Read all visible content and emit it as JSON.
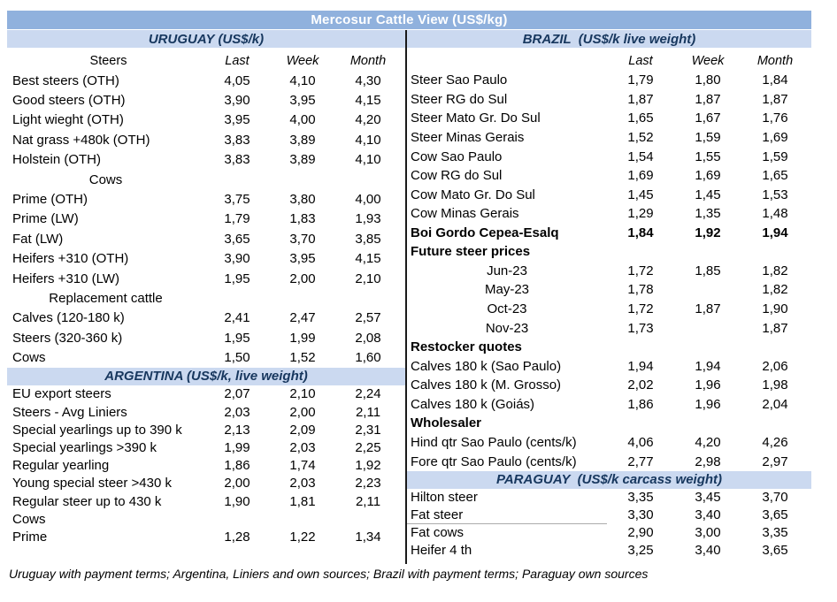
{
  "title": "Mercosur Cattle View (US$/kg)",
  "footer": "Uruguay with payment terms; Argentina, Liniers and own sources; Brazil with payment terms; Paraguay own sources",
  "colors": {
    "title_bar_bg": "#90B1DD",
    "title_text": "#FFFFFF",
    "section_bar_bg": "#CBD9F0",
    "section_text": "#17375E",
    "body_text": "#000000",
    "divider": "#1A1A1A",
    "faint_line": "#C8C8C8"
  },
  "table": {
    "col_headers": {
      "last": "Last",
      "week": "Week",
      "month": "Month"
    },
    "left": {
      "sections": [
        {
          "id": "uruguay",
          "header": "URUGUAY (US$/k)",
          "label_header": "Steers",
          "show_col_headers": true,
          "rows": [
            {
              "label": "Best steers (OTH)",
              "last": "4,05",
              "week": "4,10",
              "month": "4,30"
            },
            {
              "label": "Good steers (OTH)",
              "last": "3,90",
              "week": "3,95",
              "month": "4,15"
            },
            {
              "label": "Light wieght (OTH)",
              "last": "3,95",
              "week": "4,00",
              "month": "4,20"
            },
            {
              "label": "Nat grass +480k (OTH)",
              "last": "3,83",
              "week": "3,89",
              "month": "4,10"
            },
            {
              "label": "Holstein (OTH)",
              "last": "3,83",
              "week": "3,89",
              "month": "4,10"
            },
            {
              "label": "Cows",
              "align": "center"
            },
            {
              "label": "Prime (OTH)",
              "last": "3,75",
              "week": "3,80",
              "month": "4,00"
            },
            {
              "label": "Prime (LW)",
              "last": "1,79",
              "week": "1,83",
              "month": "1,93"
            },
            {
              "label": "Fat (LW)",
              "last": "3,65",
              "week": "3,70",
              "month": "3,85"
            },
            {
              "label": "Heifers +310 (OTH)",
              "last": "3,90",
              "week": "3,95",
              "month": "4,15"
            },
            {
              "label": "Heifers +310 (LW)",
              "last": "1,95",
              "week": "2,00",
              "month": "2,10"
            },
            {
              "label": "Replacement cattle",
              "align": "center",
              "ticks": [
                "week",
                "month"
              ]
            },
            {
              "label": "Calves (120-180 k)",
              "last": "2,41",
              "week": "2,47",
              "month": "2,57"
            },
            {
              "label": "Steers (320-360 k)",
              "last": "1,95",
              "week": "1,99",
              "month": "2,08"
            },
            {
              "label": "Cows",
              "last": "1,50",
              "week": "1,52",
              "month": "1,60"
            }
          ]
        },
        {
          "id": "argentina",
          "header": "ARGENTINA (US$/k, live weight)",
          "show_col_headers": false,
          "rows": [
            {
              "label": "EU export steers",
              "last": "2,07",
              "week": "2,10",
              "month": "2,24"
            },
            {
              "label": "Steers - Avg Liniers",
              "last": "2,03",
              "week": "2,00",
              "month": "2,11"
            },
            {
              "label": "Special yearlings up to 390 k",
              "last": "2,13",
              "week": "2,09",
              "month": "2,31"
            },
            {
              "label": "Special yearlings >390 k",
              "last": "1,99",
              "week": "2,03",
              "month": "2,25"
            },
            {
              "label": "Regular yearling",
              "last": "1,86",
              "week": "1,74",
              "month": "1,92"
            },
            {
              "label": "Young special steer >430 k",
              "last": "2,00",
              "week": "2,03",
              "month": "2,23"
            },
            {
              "label": "Regular steer up to 430 k",
              "last": "1,90",
              "week": "1,81",
              "month": "2,11"
            },
            {
              "label": "Cows"
            },
            {
              "label": "Prime",
              "last": "1,28",
              "week": "1,22",
              "month": "1,34"
            },
            {
              "label": "",
              "ticks": [
                "last",
                "week",
                "month"
              ]
            }
          ]
        }
      ]
    },
    "right": {
      "sections": [
        {
          "id": "brazil",
          "header": "BRAZIL  (US$/k live weight)",
          "label_header": "",
          "show_col_headers": true,
          "rows": [
            {
              "label": "Steer Sao Paulo",
              "last": "1,79",
              "week": "1,80",
              "month": "1,84"
            },
            {
              "label": "Steer RG do Sul",
              "last": "1,87",
              "week": "1,87",
              "month": "1,87"
            },
            {
              "label": "Steer Mato Gr. Do Sul",
              "last": "1,65",
              "week": "1,67",
              "month": "1,76"
            },
            {
              "label": "Steer Minas Gerais",
              "last": "1,52",
              "week": "1,59",
              "month": "1,69"
            },
            {
              "label": "Cow Sao Paulo",
              "last": "1,54",
              "week": "1,55",
              "month": "1,59"
            },
            {
              "label": "Cow RG do Sul",
              "last": "1,69",
              "week": "1,69",
              "month": "1,65"
            },
            {
              "label": "Cow Mato Gr. Do Sul",
              "last": "1,45",
              "week": "1,45",
              "month": "1,53"
            },
            {
              "label": "Cow Minas Gerais",
              "last": "1,29",
              "week": "1,35",
              "month": "1,48"
            },
            {
              "label": "Boi Gordo Cepea-Esalq",
              "last": "1,84",
              "week": "1,92",
              "month": "1,94",
              "bold": true,
              "bold_values": true
            },
            {
              "label": "Future steer prices",
              "bold": true
            },
            {
              "label": "Jun-23",
              "align": "center",
              "last": "1,72",
              "week": "1,85",
              "month": "1,82"
            },
            {
              "label": "May-23",
              "align": "center",
              "last": "1,78",
              "week": "",
              "month": "1,82"
            },
            {
              "label": "Oct-23",
              "align": "center",
              "last": "1,72",
              "week": "1,87",
              "month": "1,90"
            },
            {
              "label": "Nov-23",
              "align": "center",
              "last": "1,73",
              "week": "",
              "month": "1,87"
            },
            {
              "label": "Restocker quotes",
              "bold": true
            },
            {
              "label": "Calves 180 k (Sao Paulo)",
              "last": "1,94",
              "week": "1,94",
              "month": "2,06"
            },
            {
              "label": "Calves 180 k (M. Grosso)",
              "last": "2,02",
              "week": "1,96",
              "month": "1,98"
            },
            {
              "label": "Calves 180 k (Goiás)",
              "last": "1,86",
              "week": "1,96",
              "month": "2,04"
            },
            {
              "label": "Wholesaler",
              "bold": true
            },
            {
              "label": "Hind qtr Sao Paulo (cents/k)",
              "last": "4,06",
              "week": "4,20",
              "month": "4,26"
            },
            {
              "label": "Fore qtr Sao Paulo (cents/k)",
              "last": "2,77",
              "week": "2,98",
              "month": "2,97"
            }
          ]
        },
        {
          "id": "paraguay",
          "header": "PARAGUAY  (US$/k carcass weight)",
          "show_col_headers": false,
          "rows": [
            {
              "label": "Hilton steer",
              "last": "3,35",
              "week": "3,45",
              "month": "3,70"
            },
            {
              "label": "Fat steer",
              "last": "3,30",
              "week": "3,40",
              "month": "3,65",
              "underline": true
            },
            {
              "label": "Fat cows",
              "last": "2,90",
              "week": "3,00",
              "month": "3,35"
            },
            {
              "label": "Heifer 4 th",
              "last": "3,25",
              "week": "3,40",
              "month": "3,65"
            }
          ]
        }
      ]
    }
  }
}
